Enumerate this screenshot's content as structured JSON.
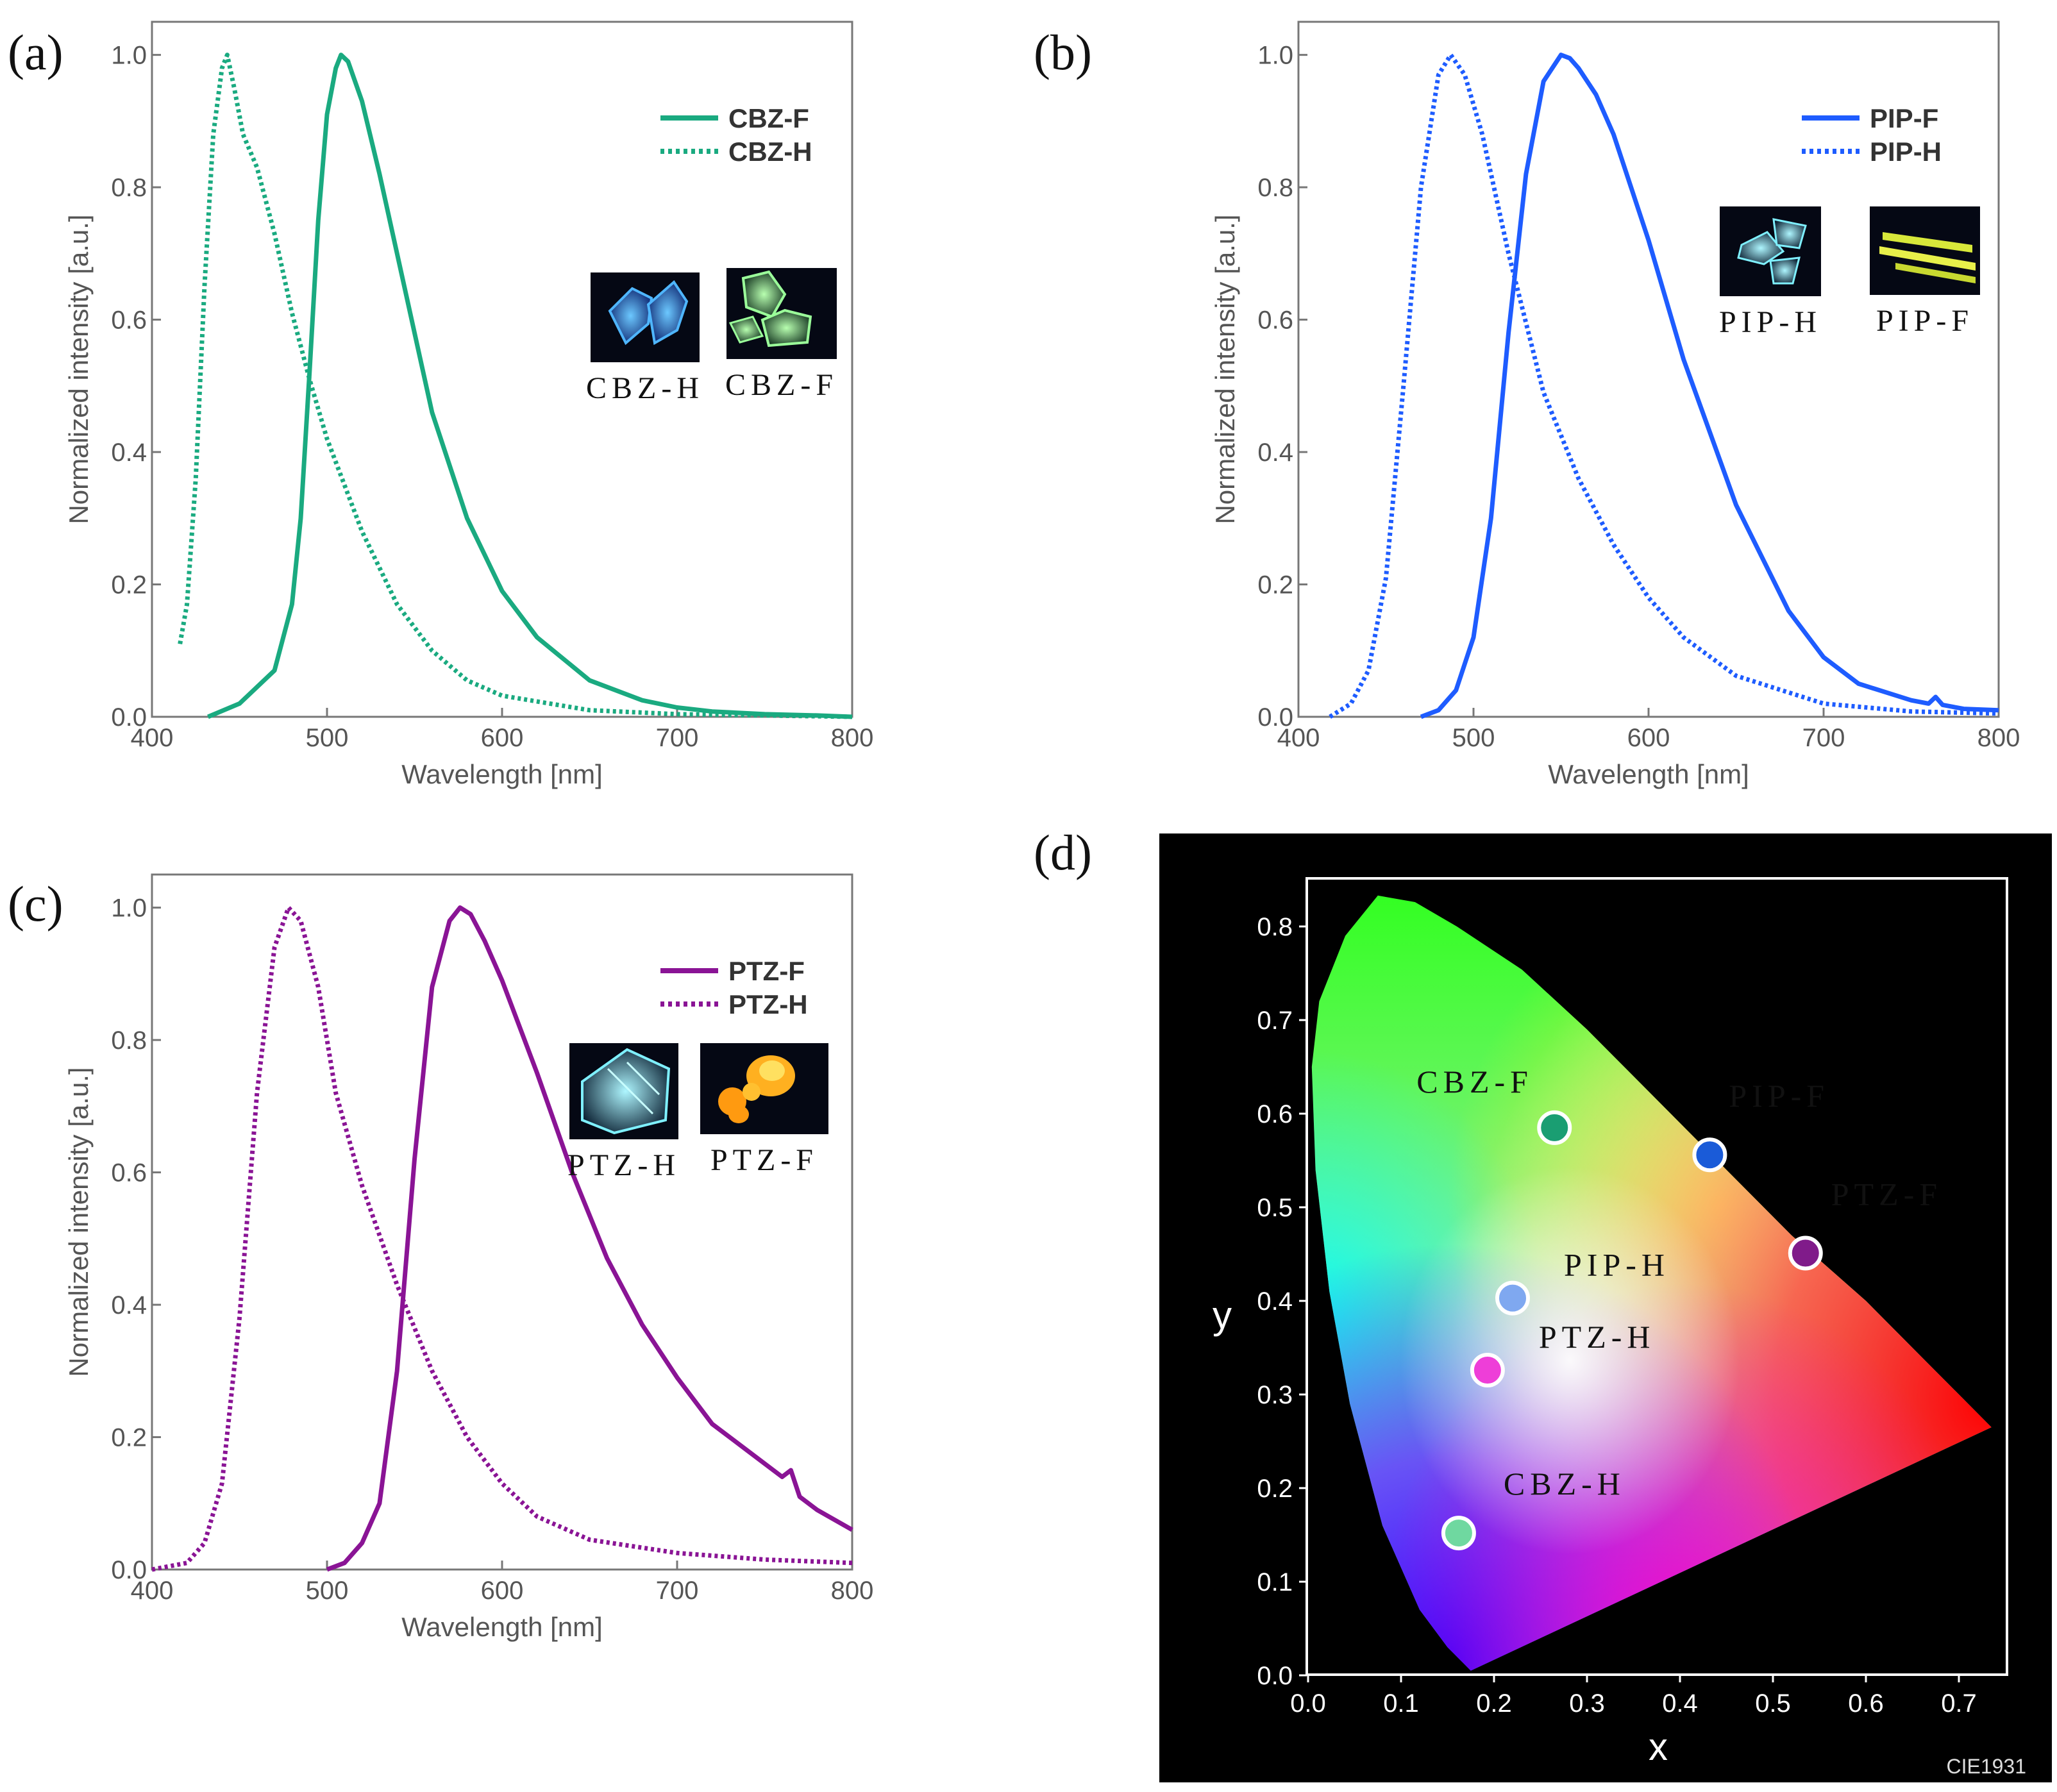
{
  "panels": {
    "a": {
      "label": "(a)"
    },
    "b": {
      "label": "(b)"
    },
    "c": {
      "label": "(c)"
    },
    "d": {
      "label": "(d)"
    }
  },
  "chart_data": [
    {
      "id": "a",
      "type": "line",
      "xlabel": "Wavelength [nm]",
      "ylabel": "Normalized intensity [a.u.]",
      "xlim": [
        400,
        800
      ],
      "ylim": [
        0,
        1.05
      ],
      "xticks": [
        "400",
        "500",
        "600",
        "700",
        "800"
      ],
      "yticks": [
        "0.0",
        "0.2",
        "0.4",
        "0.6",
        "0.8",
        "1.0"
      ],
      "color": "#1aaa80",
      "series": [
        {
          "name": "CBZ-F",
          "style": "solid",
          "x": [
            432,
            450,
            470,
            480,
            485,
            490,
            495,
            500,
            505,
            508,
            512,
            520,
            530,
            540,
            550,
            560,
            580,
            600,
            620,
            650,
            680,
            700,
            720,
            750,
            780,
            800
          ],
          "y": [
            0.0,
            0.02,
            0.07,
            0.17,
            0.3,
            0.52,
            0.75,
            0.91,
            0.98,
            1.0,
            0.99,
            0.93,
            0.82,
            0.7,
            0.58,
            0.46,
            0.3,
            0.19,
            0.12,
            0.055,
            0.025,
            0.014,
            0.008,
            0.004,
            0.002,
            0.0
          ]
        },
        {
          "name": "CBZ-H",
          "style": "dotted",
          "x": [
            416,
            420,
            425,
            430,
            435,
            440,
            443,
            447,
            452,
            460,
            470,
            480,
            490,
            500,
            520,
            540,
            560,
            580,
            600,
            650,
            700,
            750,
            800
          ],
          "y": [
            0.11,
            0.17,
            0.36,
            0.65,
            0.88,
            0.98,
            1.0,
            0.95,
            0.88,
            0.83,
            0.73,
            0.61,
            0.51,
            0.42,
            0.28,
            0.17,
            0.1,
            0.055,
            0.032,
            0.01,
            0.004,
            0.002,
            0.0
          ]
        }
      ],
      "insets": [
        {
          "caption": "CBZ-H",
          "kind": "blue-crystal"
        },
        {
          "caption": "CBZ-F",
          "kind": "green-crystal"
        }
      ]
    },
    {
      "id": "b",
      "type": "line",
      "xlabel": "Wavelength [nm]",
      "ylabel": "Normalized intensity [a.u.]",
      "xlim": [
        400,
        800
      ],
      "ylim": [
        0,
        1.05
      ],
      "xticks": [
        "400",
        "500",
        "600",
        "700",
        "800"
      ],
      "yticks": [
        "0.0",
        "0.2",
        "0.4",
        "0.6",
        "0.8",
        "1.0"
      ],
      "color": "#1e5cff",
      "series": [
        {
          "name": "PIP-F",
          "style": "solid",
          "x": [
            470,
            480,
            490,
            500,
            510,
            520,
            530,
            540,
            550,
            555,
            560,
            570,
            580,
            600,
            620,
            650,
            680,
            700,
            720,
            750,
            760,
            764,
            768,
            780,
            800
          ],
          "y": [
            0.0,
            0.01,
            0.04,
            0.12,
            0.3,
            0.58,
            0.82,
            0.96,
            1.0,
            0.995,
            0.98,
            0.94,
            0.88,
            0.72,
            0.54,
            0.32,
            0.16,
            0.09,
            0.05,
            0.025,
            0.02,
            0.03,
            0.018,
            0.012,
            0.01
          ]
        },
        {
          "name": "PIP-H",
          "style": "dotted",
          "x": [
            418,
            430,
            440,
            450,
            460,
            470,
            480,
            487,
            495,
            505,
            520,
            540,
            560,
            580,
            600,
            620,
            650,
            700,
            750,
            800
          ],
          "y": [
            0.0,
            0.02,
            0.07,
            0.21,
            0.5,
            0.8,
            0.97,
            1.0,
            0.97,
            0.88,
            0.7,
            0.49,
            0.36,
            0.26,
            0.18,
            0.12,
            0.062,
            0.02,
            0.008,
            0.005
          ]
        }
      ],
      "insets": [
        {
          "caption": "PIP-H",
          "kind": "cyan-crystal"
        },
        {
          "caption": "PIP-F",
          "kind": "yellow-needles"
        }
      ]
    },
    {
      "id": "c",
      "type": "line",
      "xlabel": "Wavelength [nm]",
      "ylabel": "Normalized intensity [a.u.]",
      "xlim": [
        400,
        800
      ],
      "ylim": [
        0,
        1.05
      ],
      "xticks": [
        "400",
        "500",
        "600",
        "700",
        "800"
      ],
      "yticks": [
        "0.0",
        "0.2",
        "0.4",
        "0.6",
        "0.8",
        "1.0"
      ],
      "color": "#8a1495",
      "series": [
        {
          "name": "PTZ-F",
          "style": "solid",
          "x": [
            500,
            510,
            520,
            530,
            540,
            550,
            560,
            570,
            576,
            582,
            590,
            600,
            620,
            640,
            660,
            680,
            700,
            720,
            740,
            760,
            765,
            770,
            780,
            800
          ],
          "y": [
            0.0,
            0.01,
            0.04,
            0.1,
            0.3,
            0.62,
            0.88,
            0.98,
            1.0,
            0.99,
            0.95,
            0.89,
            0.75,
            0.6,
            0.47,
            0.37,
            0.29,
            0.22,
            0.18,
            0.14,
            0.15,
            0.11,
            0.09,
            0.06
          ]
        },
        {
          "name": "PTZ-H",
          "style": "dotted",
          "x": [
            400,
            420,
            430,
            440,
            450,
            460,
            470,
            478,
            485,
            495,
            505,
            520,
            540,
            560,
            580,
            600,
            620,
            650,
            700,
            750,
            800
          ],
          "y": [
            0.0,
            0.01,
            0.04,
            0.13,
            0.38,
            0.72,
            0.94,
            1.0,
            0.98,
            0.88,
            0.72,
            0.58,
            0.43,
            0.3,
            0.2,
            0.13,
            0.08,
            0.045,
            0.025,
            0.015,
            0.01
          ]
        }
      ],
      "insets": [
        {
          "caption": "PTZ-H",
          "kind": "cyan-slab"
        },
        {
          "caption": "PTZ-F",
          "kind": "orange-crystal"
        }
      ]
    },
    {
      "id": "d",
      "type": "scatter",
      "title": "CIE1931",
      "xlabel": "x",
      "ylabel": "y",
      "xlim": [
        0.0,
        0.75
      ],
      "ylim": [
        0.0,
        0.85
      ],
      "xticks": [
        "0.0",
        "0.1",
        "0.2",
        "0.3",
        "0.4",
        "0.5",
        "0.6",
        "0.7"
      ],
      "yticks": [
        "0.0",
        "0.1",
        "0.2",
        "0.3",
        "0.4",
        "0.5",
        "0.6",
        "0.7",
        "0.8"
      ],
      "points": [
        {
          "name": "CBZ-F",
          "x": 0.265,
          "y": 0.585,
          "color": "#1a9e72"
        },
        {
          "name": "PIP-F",
          "x": 0.432,
          "y": 0.556,
          "color": "#1a5bd8"
        },
        {
          "name": "PTZ-F",
          "x": 0.535,
          "y": 0.451,
          "color": "#801b8a"
        },
        {
          "name": "PIP-H",
          "x": 0.22,
          "y": 0.403,
          "color": "#7fa8f0"
        },
        {
          "name": "PTZ-H",
          "x": 0.193,
          "y": 0.326,
          "color": "#ee3ed8"
        },
        {
          "name": "CBZ-H",
          "x": 0.162,
          "y": 0.152,
          "color": "#6fd8a0"
        }
      ]
    }
  ]
}
